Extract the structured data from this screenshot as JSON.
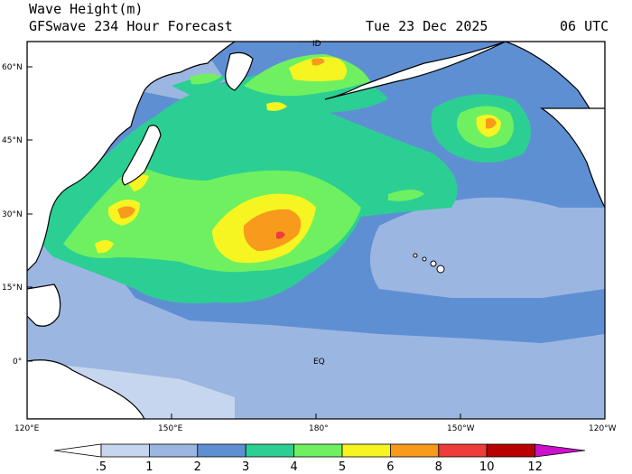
{
  "header": {
    "title": "Wave Height(m)",
    "subtitle": "GFSwave 234 Hour Forecast",
    "date": "Tue 23 Dec 2025",
    "time": "06 UTC"
  },
  "map": {
    "lat_labels": [
      "60°N",
      "45°N",
      "30°N",
      "15°N",
      "0°"
    ],
    "lon_labels": [
      "120°E",
      "150°E",
      "180°",
      "150°W",
      "120°W"
    ],
    "annotations": {
      "equator": "EQ",
      "dateline": "ID"
    },
    "colors": {
      "land": "#ffffff",
      "lt_0_5": "#ffffff",
      "c0_5_1": "#c6d6ee",
      "c1_2": "#9cb6e2",
      "c2_3": "#5f8fd3",
      "c3_4": "#2ccf93",
      "c4_5": "#6ff061",
      "c5_6": "#f6f421",
      "c6_8": "#f89a1c",
      "c8_10": "#ef3b3b",
      "c10_12": "#b80000",
      "gt_12": "#cc10cc"
    }
  },
  "colorbar": {
    "labels": [
      ".5",
      "1",
      "2",
      "3",
      "4",
      "5",
      "6",
      "8",
      "10",
      "12"
    ],
    "colors": [
      "#ffffff",
      "#c6d6ee",
      "#9cb6e2",
      "#5f8fd3",
      "#2ccf93",
      "#6ff061",
      "#f6f421",
      "#f89a1c",
      "#ef3b3b",
      "#b80000"
    ],
    "arrow_color": "#cc10cc"
  }
}
